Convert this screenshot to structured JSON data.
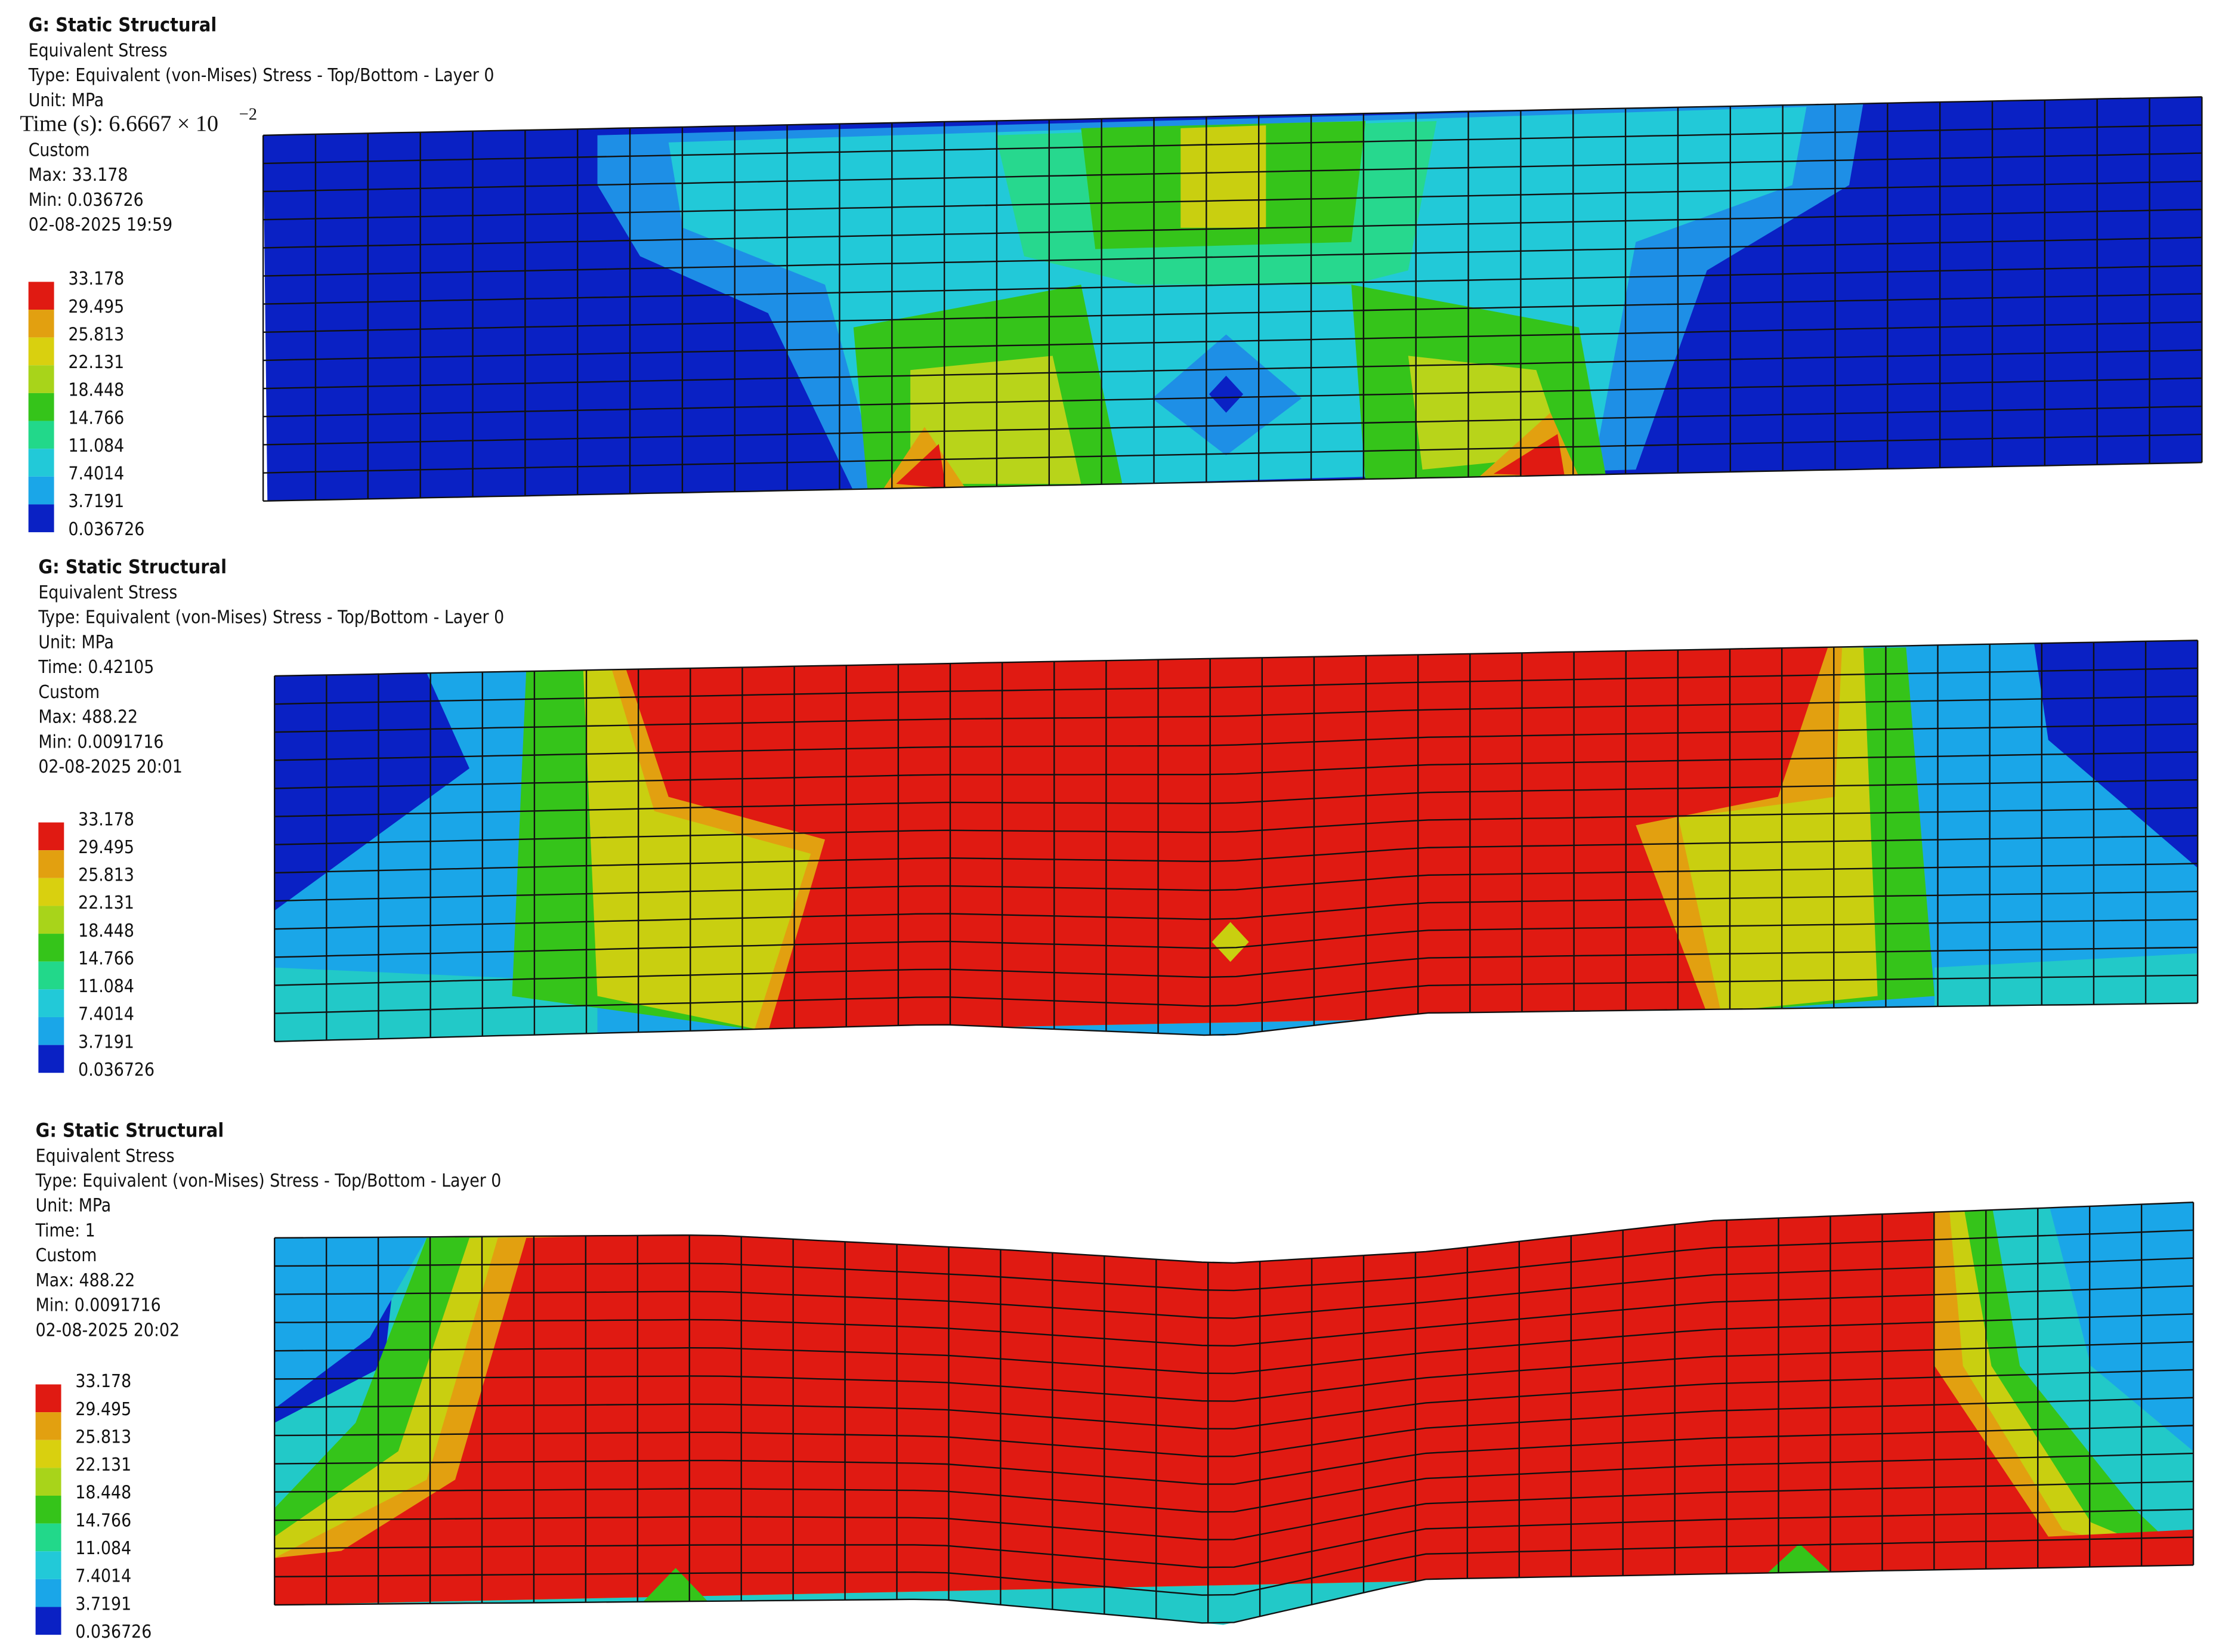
{
  "panels": [
    {
      "title": "G: Static Structural",
      "lines": [
        "Equivalent Stress",
        "Type: Equivalent (von-Mises) Stress - Top/Bottom - Layer 0",
        "Unit: MPa",
        "Time (s): 6.6667 × 10",
        "Custom",
        "Max: 33.178",
        "Min: 0.036726",
        "02-08-2025 19:59"
      ],
      "time_exponent": "−2",
      "legend": [
        "33.178",
        "29.495",
        "25.813",
        "22.131",
        "18.448",
        "14.766",
        "11.084",
        "7.4014",
        "3.7191",
        "0.036726"
      ]
    },
    {
      "title": "G: Static Structural",
      "lines": [
        "Equivalent Stress",
        "Type: Equivalent (von-Mises) Stress - Top/Bottom - Layer 0",
        "Unit: MPa",
        "Time: 0.42105",
        "Custom",
        "Max: 488.22",
        "Min: 0.0091716",
        "02-08-2025 20:01"
      ],
      "legend": [
        "33.178",
        "29.495",
        "25.813",
        "22.131",
        "18.448",
        "14.766",
        "11.084",
        "7.4014",
        "3.7191",
        "0.036726"
      ]
    },
    {
      "title": "G: Static Structural",
      "lines": [
        "Equivalent Stress",
        "Type: Equivalent (von-Mises) Stress - Top/Bottom - Layer 0",
        "Unit: MPa",
        "Time: 1",
        "Custom",
        "Max: 488.22",
        "Min: 0.0091716",
        "02-08-2025 20:02"
      ],
      "legend": [
        "33.178",
        "29.495",
        "25.813",
        "22.131",
        "18.448",
        "14.766",
        "11.084",
        "7.4014",
        "3.7191",
        "0.036726"
      ]
    }
  ]
}
